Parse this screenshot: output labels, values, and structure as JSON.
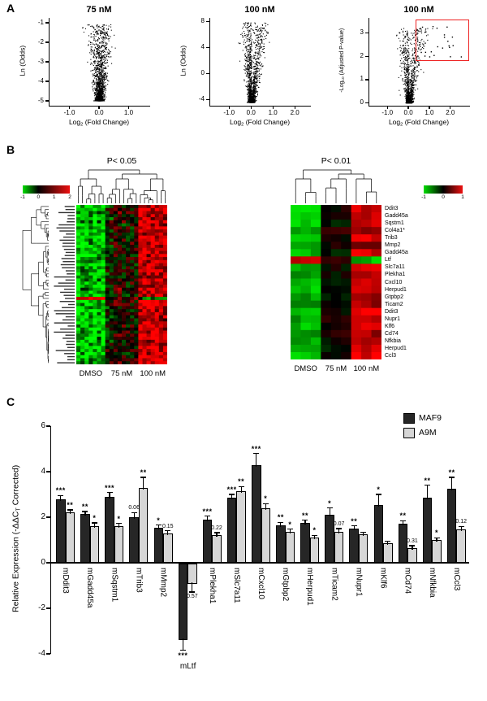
{
  "panels": {
    "a": "A",
    "b": "B",
    "c": "C"
  },
  "palette": {
    "heat_green": "#00dd00",
    "heat_red": "#ee1111",
    "point_black": "#000000",
    "bar_dark": "#262626",
    "bar_light": "#d6d6d6",
    "red_box": "#ee2222"
  },
  "chart_data": [
    {
      "id": "volcano-75nM",
      "type": "scatter",
      "title": "75 nM",
      "xlabel_parts": [
        "Log",
        "2",
        " (Fold Change)"
      ],
      "ylabel_parts": [
        "Ln (Odds)"
      ],
      "xlim": [
        -1.7,
        1.7
      ],
      "ylim": [
        -5.25,
        -0.75
      ],
      "xticks": [
        "-1.0",
        "0.0",
        "1.0"
      ],
      "yticks": [
        "-1",
        "-2",
        "-3",
        "-4",
        "-5"
      ],
      "n_points": 1600,
      "seed": 11,
      "expo": 2.6,
      "x_core": 0.11,
      "x_grow": 0.3,
      "y_base": -5.0,
      "y_range": 3.9,
      "description": "volcano point cloud, dense near Ln(Odds)=-5 at Log2FC=0, fanning upward/outward"
    },
    {
      "id": "volcano-100nM-odds",
      "type": "scatter",
      "title": "100 nM",
      "xlabel_parts": [
        "Log",
        "2",
        " (Fold Change)"
      ],
      "ylabel_parts": [
        "Ln (Odds)"
      ],
      "xlim": [
        -1.9,
        2.7
      ],
      "ylim": [
        -4.9,
        8.6
      ],
      "xticks": [
        "-1.0",
        "0.0",
        "1.0",
        "2.0"
      ],
      "yticks": [
        "8",
        "4",
        "0",
        "-4"
      ],
      "n_points": 1600,
      "seed": 23,
      "expo": 3.0,
      "x_core": 0.12,
      "x_grow": 0.34,
      "x_skew": 0.5,
      "y_base": -4.4,
      "y_range": 12.3,
      "description": "volcano point cloud, dense near Ln(Odds)=-4.4, arms up to 8"
    },
    {
      "id": "volcano-100nM-pvalue",
      "type": "scatter",
      "title": "100 nM",
      "xlabel_parts": [
        "Log",
        "2",
        " (Fold Change)"
      ],
      "ylabel_parts": [
        "-Log",
        "10",
        " (Adjusted P-value)"
      ],
      "small_ylabel": true,
      "xlim": [
        -1.9,
        2.9
      ],
      "ylim": [
        -0.12,
        3.65
      ],
      "xticks": [
        "-1.0",
        "0.0",
        "1.0",
        "2.0"
      ],
      "yticks": [
        "0",
        "1",
        "2",
        "3"
      ],
      "n_points": 1300,
      "seed": 37,
      "expo": 3.4,
      "x_core": 0.12,
      "x_grow": 0.45,
      "x_skew": 0.55,
      "y_base": 0.0,
      "y_range": 3.2,
      "extra_cluster": {
        "n": 26,
        "x": [
          0.45,
          2.5
        ],
        "y": [
          1.95,
          3.35
        ]
      },
      "red_box": {
        "x0": 0.3,
        "x1": 2.78,
        "y0": 1.88,
        "y1": 3.58
      },
      "description": "volcano with red selection box around significant upregulated genes top-right"
    },
    {
      "id": "heatmap-p05",
      "type": "heatmap",
      "title": "P< 0.05",
      "columns_groups": [
        "DMSO",
        "75 nM",
        "100 nM"
      ],
      "cols_per_group": [
        7,
        8,
        7
      ],
      "rows": 52,
      "inverted_row": 30,
      "group_means": [
        -0.85,
        0.05,
        0.85
      ],
      "noise": 0.5,
      "seed": 7,
      "scale_ticks": [
        "-1",
        "0",
        "1",
        "2"
      ],
      "description": "clustered heatmap: green in DMSO, dark in 75 nM, red in 100 nM; one inverted (Ltf-like) row; row labels illegible at this scale"
    },
    {
      "id": "heatmap-p01",
      "type": "heatmap",
      "title": "P< 0.01",
      "columns_groups": [
        "DMSO",
        "75 nM",
        "100 nM"
      ],
      "cols_per_group": [
        3,
        3,
        3
      ],
      "scale_ticks": [
        "-1",
        "0",
        "1"
      ],
      "genes": [
        {
          "name": "Ddit3",
          "values": [
            -0.9,
            0.1,
            0.9
          ]
        },
        {
          "name": "Gadd45a",
          "values": [
            -0.8,
            0.0,
            0.8
          ]
        },
        {
          "name": "Sqstm1",
          "values": [
            -0.9,
            -0.1,
            0.9
          ]
        },
        {
          "name": "Col4a1*",
          "values": [
            -0.7,
            0.2,
            0.7
          ]
        },
        {
          "name": "Trib3",
          "values": [
            -0.9,
            0.0,
            1.0
          ]
        },
        {
          "name": "Mmp2",
          "values": [
            -0.6,
            0.1,
            0.6
          ]
        },
        {
          "name": "Gadd45a",
          "values": [
            -0.8,
            -0.1,
            0.9
          ]
        },
        {
          "name": "Ltf",
          "values": [
            0.9,
            0.2,
            -0.8
          ]
        },
        {
          "name": "Slc7a11",
          "values": [
            -0.8,
            0.0,
            1.0
          ]
        },
        {
          "name": "Plekha1",
          "values": [
            -0.7,
            0.0,
            0.8
          ]
        },
        {
          "name": "Cxcl10",
          "values": [
            -0.9,
            -0.2,
            1.0
          ]
        },
        {
          "name": "Herpud1",
          "values": [
            -0.8,
            0.1,
            0.8
          ]
        },
        {
          "name": "Gtpbp2",
          "values": [
            -0.7,
            0.0,
            0.7
          ]
        },
        {
          "name": "Ticam2",
          "values": [
            -0.6,
            0.1,
            0.7
          ]
        },
        {
          "name": "Ddit3",
          "values": [
            -0.9,
            0.0,
            1.0
          ]
        },
        {
          "name": "Nupr1",
          "values": [
            -0.7,
            0.1,
            0.8
          ]
        },
        {
          "name": "Klf6",
          "values": [
            -0.8,
            0.0,
            0.9
          ]
        },
        {
          "name": "Cd74",
          "values": [
            -0.6,
            0.1,
            0.7
          ]
        },
        {
          "name": "Nfkbia",
          "values": [
            -0.7,
            0.0,
            0.8
          ]
        },
        {
          "name": "Herpud1",
          "values": [
            -0.8,
            -0.1,
            0.9
          ]
        },
        {
          "name": "Ccl3",
          "values": [
            -0.9,
            0.1,
            1.0
          ]
        }
      ]
    },
    {
      "id": "qpcr-bars",
      "type": "bar",
      "ylabel_parts": [
        "Relative Expression (-ΔΔC",
        "T",
        " Corrected)"
      ],
      "ylim": [
        -4,
        6
      ],
      "yticks": [
        6,
        4,
        2,
        0,
        -2,
        -4
      ],
      "series": [
        "MAF9",
        "A9M"
      ],
      "categories": [
        {
          "name": "mDdit3",
          "maf9": {
            "v": 2.8,
            "err": 0.15,
            "sig": "***"
          },
          "a9m": {
            "v": 2.2,
            "err": 0.12,
            "sig": "**"
          }
        },
        {
          "name": "mGadd45a",
          "maf9": {
            "v": 2.15,
            "err": 0.1,
            "sig": "**"
          },
          "a9m": {
            "v": 1.6,
            "err": 0.15,
            "sig": "*"
          }
        },
        {
          "name": "mSqstm1",
          "maf9": {
            "v": 2.9,
            "err": 0.18,
            "sig": "***"
          },
          "a9m": {
            "v": 1.62,
            "err": 0.1,
            "sig": "*"
          }
        },
        {
          "name": "mTrib3",
          "maf9": {
            "v": 2.0,
            "err": 0.2,
            "sig": "0.06"
          },
          "a9m": {
            "v": 3.3,
            "err": 0.45,
            "sig": "**"
          }
        },
        {
          "name": "mMmp2",
          "maf9": {
            "v": 1.55,
            "err": 0.1,
            "sig": "*"
          },
          "a9m": {
            "v": 1.3,
            "err": 0.1,
            "sig": "0.15"
          }
        },
        {
          "name": "mLtf",
          "label_below": true,
          "maf9": {
            "v": -3.35,
            "err": 0.45,
            "sig": "***"
          },
          "a9m": {
            "v": -0.9,
            "err": 0.35,
            "sig": "0.57"
          }
        },
        {
          "name": "mPlekha1",
          "maf9": {
            "v": 1.9,
            "err": 0.15,
            "sig": "***"
          },
          "a9m": {
            "v": 1.2,
            "err": 0.12,
            "sig": "0.22"
          }
        },
        {
          "name": "mSlc7a11",
          "maf9": {
            "v": 2.85,
            "err": 0.15,
            "sig": "***"
          },
          "a9m": {
            "v": 3.15,
            "err": 0.2,
            "sig": "**"
          }
        },
        {
          "name": "mCxcl10",
          "maf9": {
            "v": 4.3,
            "err": 0.5,
            "sig": "***"
          },
          "a9m": {
            "v": 2.4,
            "err": 0.2,
            "sig": "*"
          }
        },
        {
          "name": "mGtpbp2",
          "maf9": {
            "v": 1.65,
            "err": 0.12,
            "sig": "**"
          },
          "a9m": {
            "v": 1.35,
            "err": 0.12,
            "sig": "*"
          }
        },
        {
          "name": "mHerpud1",
          "maf9": {
            "v": 1.75,
            "err": 0.12,
            "sig": "**"
          },
          "a9m": {
            "v": 1.1,
            "err": 0.1,
            "sig": "*"
          }
        },
        {
          "name": "mTicam2",
          "maf9": {
            "v": 2.1,
            "err": 0.3,
            "sig": "*"
          },
          "a9m": {
            "v": 1.35,
            "err": 0.15,
            "sig": "0.07"
          }
        },
        {
          "name": "mNupr1",
          "maf9": {
            "v": 1.5,
            "err": 0.12,
            "sig": "**"
          },
          "a9m": {
            "v": 1.25,
            "err": 0.1,
            "sig": ""
          }
        },
        {
          "name": "mKlf6",
          "maf9": {
            "v": 2.55,
            "err": 0.45,
            "sig": "*"
          },
          "a9m": {
            "v": 0.85,
            "err": 0.1,
            "sig": ""
          }
        },
        {
          "name": "mCd74",
          "maf9": {
            "v": 1.7,
            "err": 0.15,
            "sig": "**"
          },
          "a9m": {
            "v": 0.65,
            "err": 0.1,
            "sig": "0.31"
          }
        },
        {
          "name": "mNfkbia",
          "maf9": {
            "v": 2.85,
            "err": 0.55,
            "sig": "**"
          },
          "a9m": {
            "v": 1.0,
            "err": 0.1,
            "sig": "*"
          }
        },
        {
          "name": "mCcl3",
          "maf9": {
            "v": 3.25,
            "err": 0.5,
            "sig": "**"
          },
          "a9m": {
            "v": 1.45,
            "err": 0.15,
            "sig": "0.12"
          }
        }
      ]
    }
  ]
}
